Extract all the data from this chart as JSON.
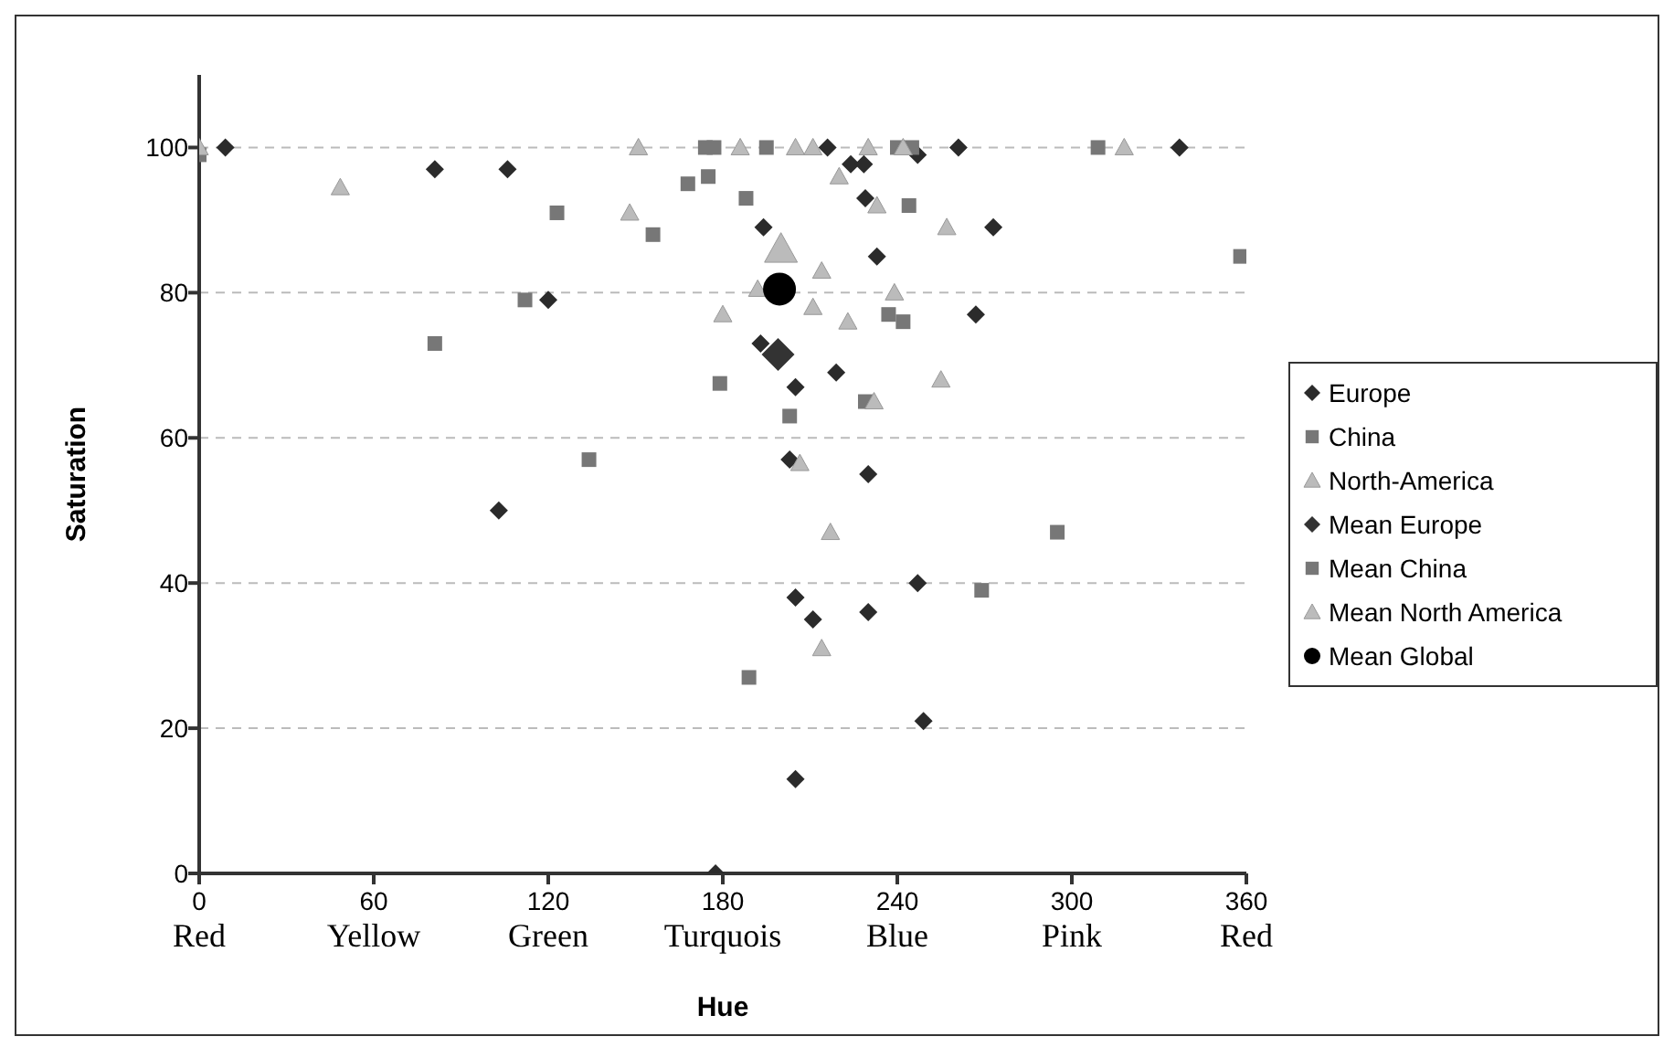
{
  "chart_data": {
    "type": "scatter",
    "xlabel": "Hue",
    "ylabel": "Saturation",
    "xlim": [
      0,
      360
    ],
    "ylim": [
      0,
      110
    ],
    "xticks": [
      {
        "value": 0,
        "label": "0\nRed"
      },
      {
        "value": 60,
        "label": "60\nYellow"
      },
      {
        "value": 120,
        "label": "120\nGreen"
      },
      {
        "value": 180,
        "label": "180\nTurquois"
      },
      {
        "value": 240,
        "label": "240\nBlue"
      },
      {
        "value": 300,
        "label": "300\nPink"
      },
      {
        "value": 360,
        "label": "360\nRed"
      }
    ],
    "yticks": [
      0,
      20,
      40,
      60,
      80,
      100
    ],
    "grid": "y",
    "legend": "right",
    "series": [
      {
        "name": "Europe",
        "color": "#2b2b2b",
        "marker": "diamond",
        "x": [
          9,
          81,
          103,
          106,
          120,
          177.5,
          193,
          194,
          203,
          205,
          205,
          205,
          211,
          216,
          219,
          224,
          228.5,
          229,
          230,
          230,
          233,
          247,
          247,
          249,
          261,
          267,
          273,
          337
        ],
        "values": [
          100,
          97,
          50,
          97,
          79,
          0,
          73,
          89,
          57,
          67,
          38,
          13,
          35,
          100,
          69,
          97.7,
          97.7,
          93,
          55,
          36,
          85,
          99,
          40,
          21,
          100,
          77,
          89,
          100
        ]
      },
      {
        "name": "China",
        "color": "#777777",
        "x": [
          0,
          81,
          112,
          123,
          134,
          156,
          168,
          174,
          175,
          177,
          179,
          188,
          189,
          195,
          203,
          229,
          237,
          240,
          242,
          244,
          245,
          269,
          295,
          309,
          358
        ],
        "values": [
          99,
          73,
          79,
          91,
          57,
          88,
          95,
          100,
          96,
          100,
          67.5,
          93,
          27,
          100,
          63,
          65,
          77,
          100,
          76,
          92,
          100,
          39,
          47,
          100,
          85
        ],
        "marker": "square"
      },
      {
        "name": "North-America",
        "color": "#bbbbbb",
        "marker": "triangle",
        "x": [
          0,
          48.5,
          148,
          151,
          180,
          186,
          192,
          205,
          206.5,
          211,
          211,
          214,
          214,
          217,
          220,
          223,
          230,
          232,
          233,
          239,
          242,
          255,
          257,
          318
        ],
        "values": [
          100,
          94.5,
          91,
          100,
          77,
          100,
          80.5,
          100,
          56.5,
          100,
          78,
          83,
          31,
          47,
          96,
          76,
          100,
          65,
          92,
          80,
          100,
          68,
          89,
          100
        ]
      },
      {
        "name": "Mean Europe",
        "color": "#333333",
        "marker": "diamond",
        "x": [
          199
        ],
        "values": [
          71.5
        ]
      },
      {
        "name": "Mean China",
        "color": "#777777",
        "marker": "square",
        "x": [
          null
        ],
        "values": [
          null
        ]
      },
      {
        "name": "Mean North America",
        "color": "#bbbbbb",
        "marker": "triangle",
        "x": [
          200
        ],
        "values": [
          86
        ]
      },
      {
        "name": "Mean Global",
        "color": "#000000",
        "marker": "circle",
        "x": [
          199.5
        ],
        "values": [
          80.5
        ]
      }
    ]
  }
}
